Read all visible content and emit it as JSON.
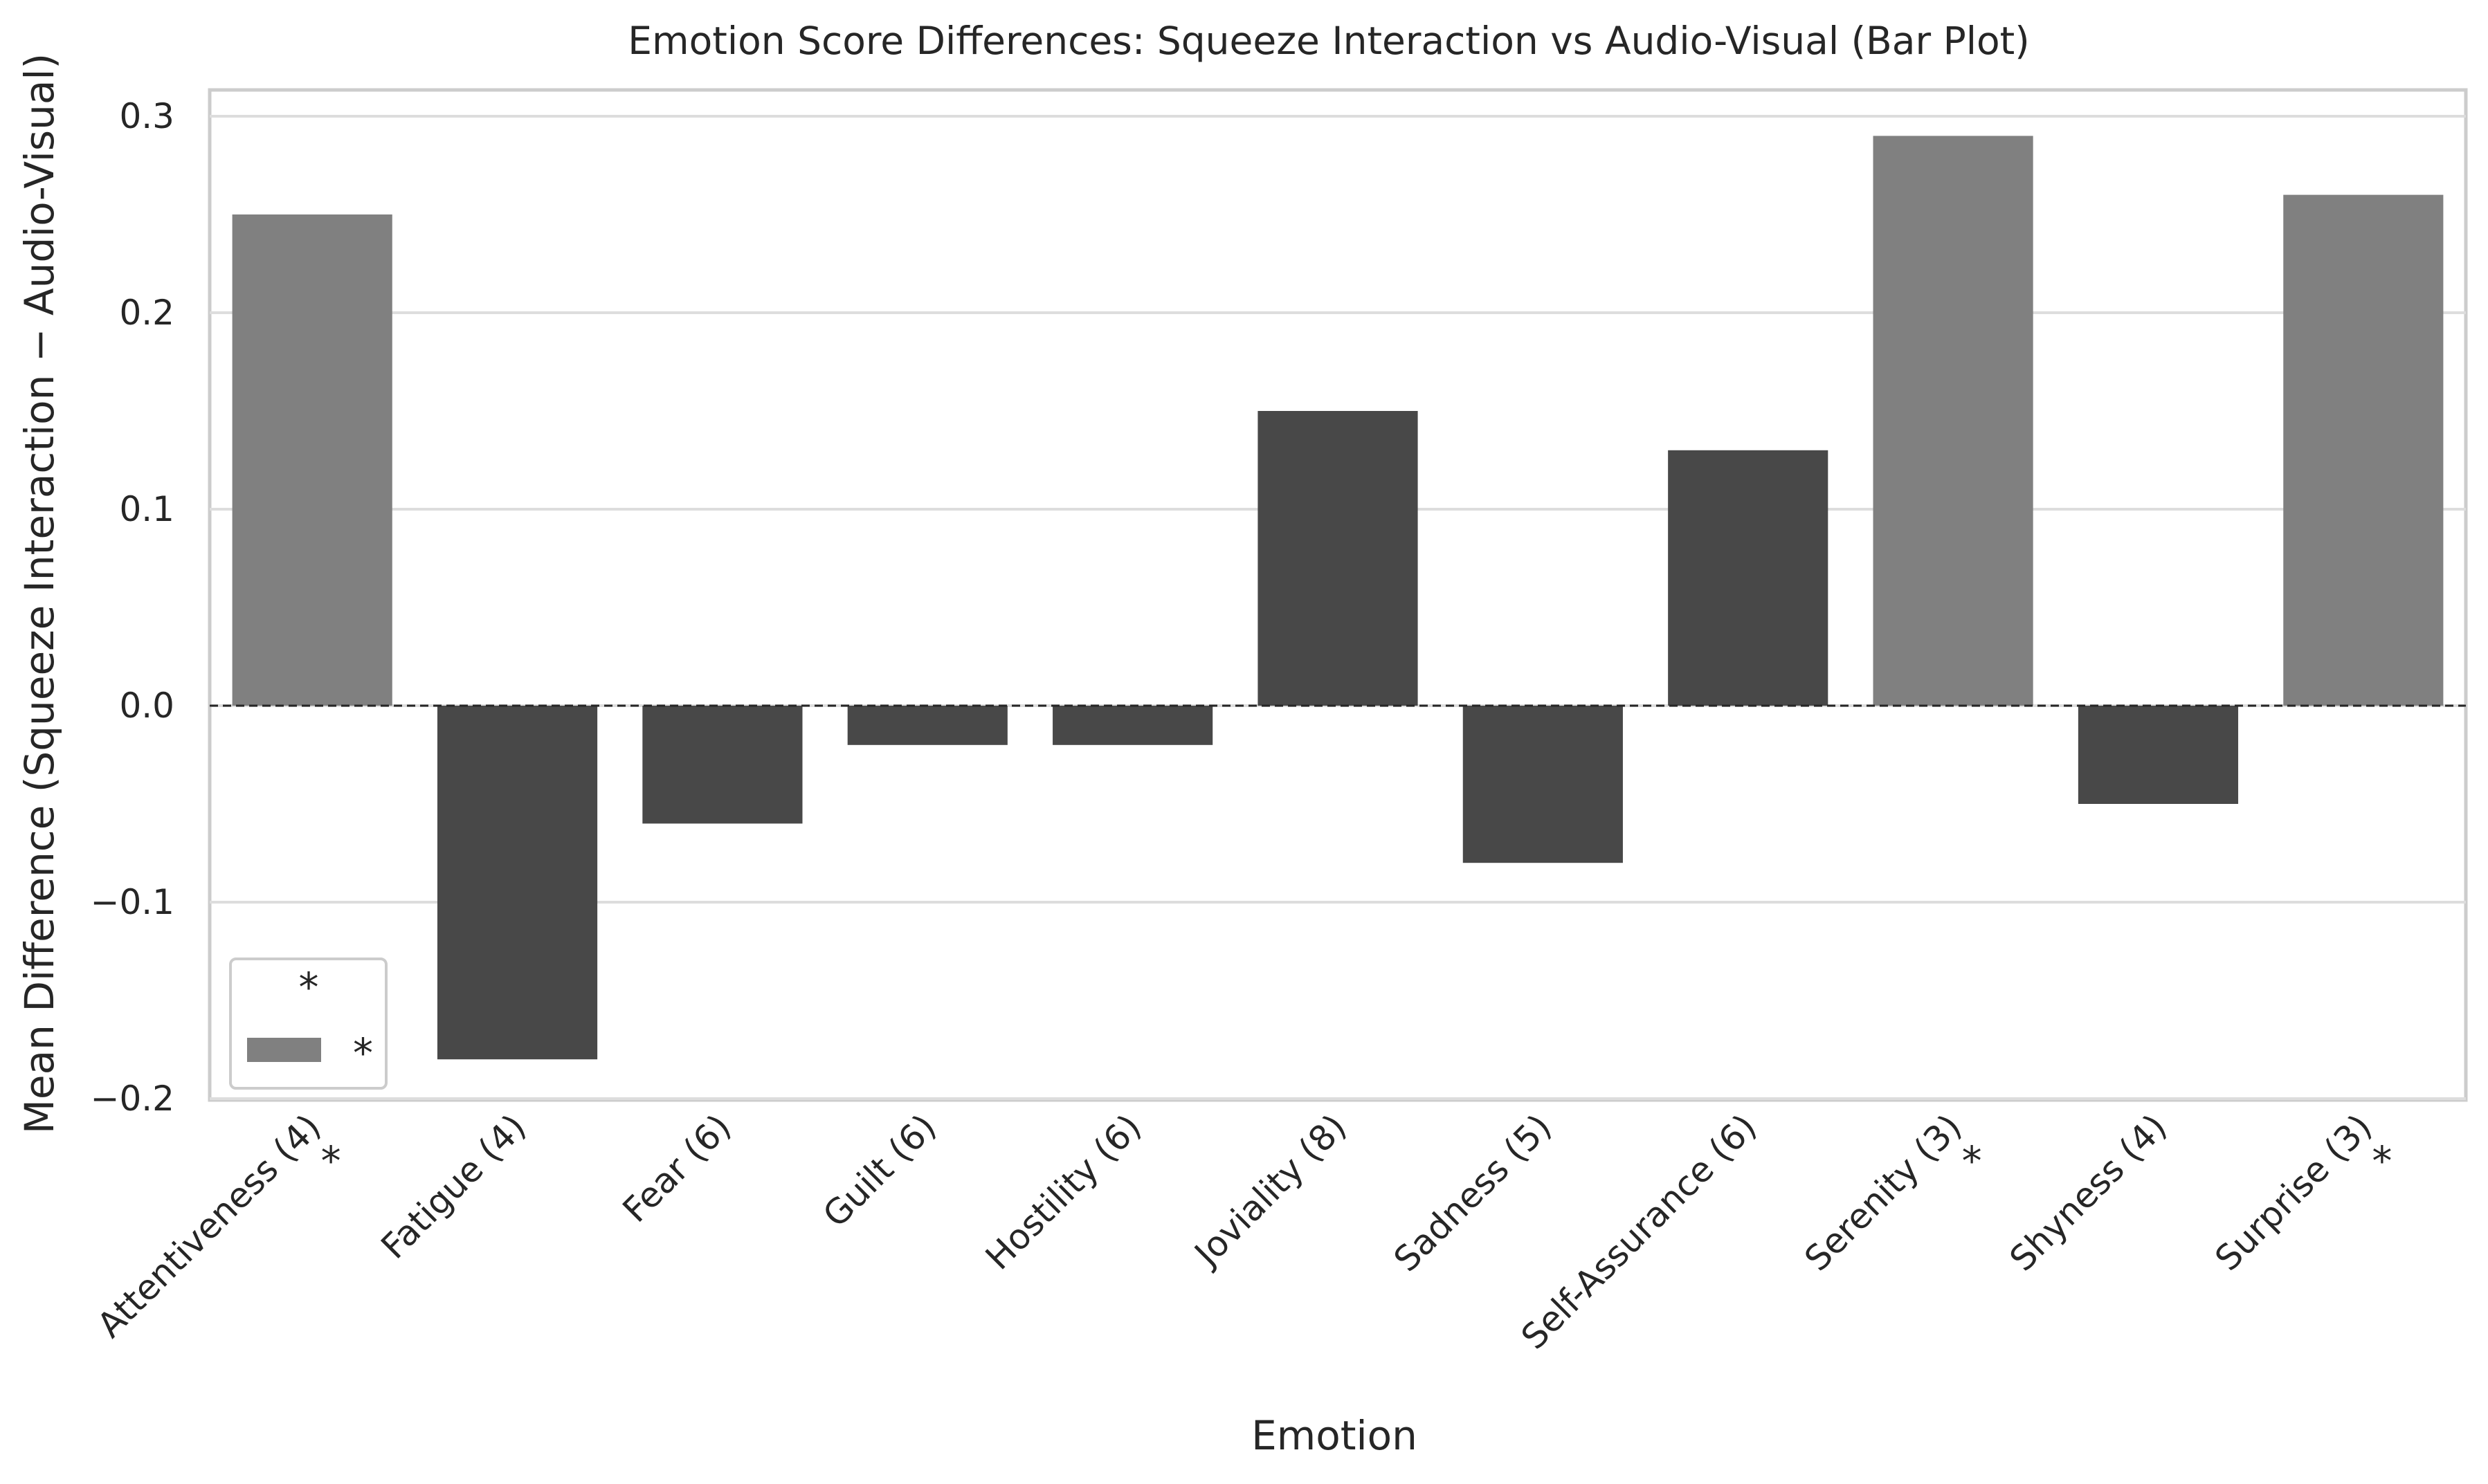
{
  "chart_data": {
    "type": "bar",
    "title": "Emotion Score Differences: Squeeze Interaction vs Audio-Visual (Bar Plot)",
    "xlabel": "Emotion",
    "ylabel": "Mean Difference (Squeeze Interaction − Audio-Visual)",
    "ylim": [
      -0.2,
      0.3
    ],
    "yticks": [
      -0.2,
      -0.1,
      0.0,
      0.1,
      0.2,
      0.3
    ],
    "ytick_labels": [
      "−0.2",
      "−0.1",
      "0.0",
      "0.1",
      "0.2",
      "0.3"
    ],
    "grid": true,
    "zero_line": "dashed",
    "categories": [
      "Attentiveness (4)",
      "Fatigue (4)",
      "Fear (6)",
      "Guilt (6)",
      "Hostility (6)",
      "Joviality (8)",
      "Sadness (5)",
      "Self-Assurance (6)",
      "Serenity (3)",
      "Shyness (4)",
      "Surprise (3)"
    ],
    "values": [
      0.25,
      -0.18,
      -0.06,
      -0.02,
      -0.02,
      0.15,
      -0.08,
      0.13,
      0.29,
      -0.05,
      0.26
    ],
    "significant": [
      true,
      false,
      false,
      false,
      false,
      false,
      false,
      false,
      true,
      false,
      true
    ],
    "significance_marker": "*",
    "colors": {
      "significant": "#808080",
      "not_significant": "#484848"
    },
    "legend": {
      "title": "*",
      "entries": [
        {
          "label": "*",
          "color": "#808080"
        }
      ],
      "placement": "lower-left"
    }
  }
}
